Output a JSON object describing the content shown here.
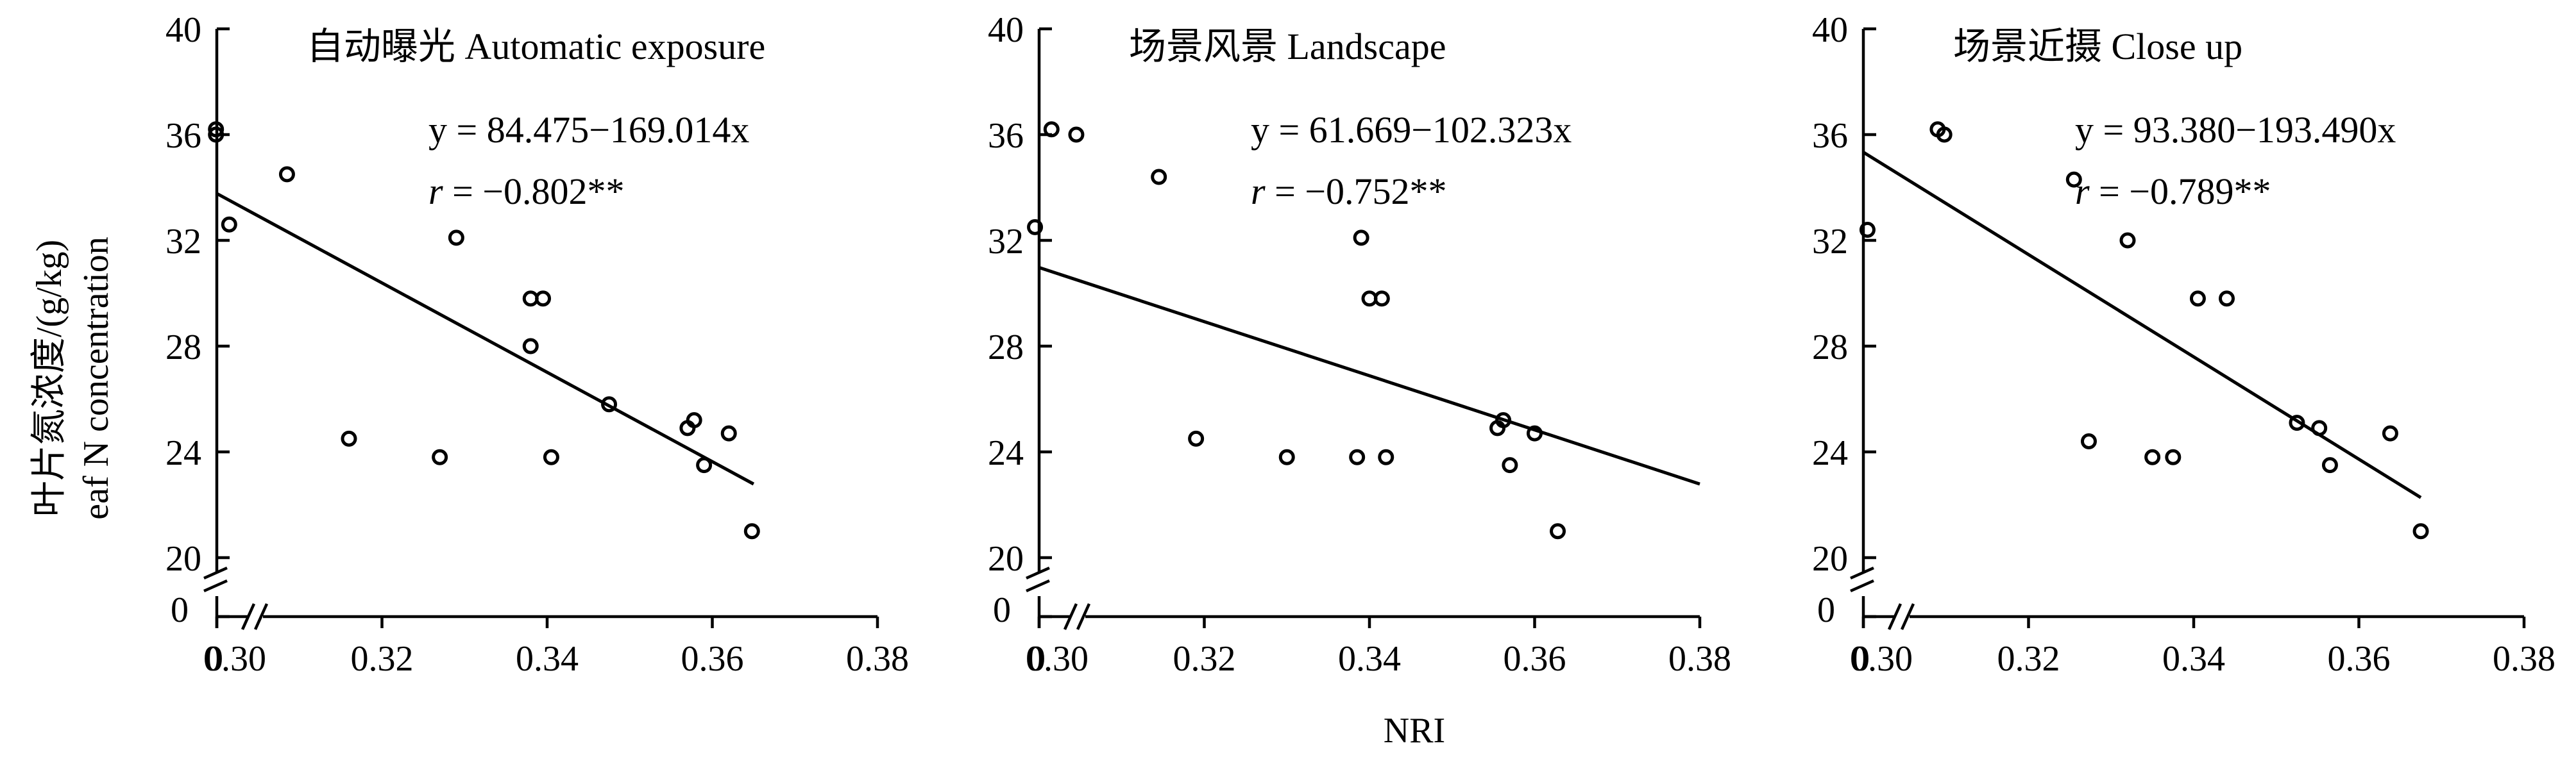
{
  "figure": {
    "ylabel_cn": "叶片氮浓度/(g/kg)",
    "ylabel_en": "eaf N concentration",
    "xlabel": "NRI"
  },
  "chart_data": [
    {
      "type": "scatter",
      "title": "自动曝光 Automatic exposure",
      "equation": "y = 84.475−169.014x",
      "r_prefix": "r",
      "r_value": " = −0.802**",
      "xlim": [
        0.3,
        0.38
      ],
      "ylim": [
        20,
        40
      ],
      "xticks": [
        0.3,
        0.32,
        0.34,
        0.36,
        0.38
      ],
      "xtick_labels": [
        "0.30",
        "0.32",
        "0.34",
        "0.36",
        "0.38"
      ],
      "yticks": [
        20,
        24,
        28,
        32,
        36,
        40
      ],
      "ytick_labels": [
        "20",
        "24",
        "28",
        "32",
        "36",
        "40"
      ],
      "zero_label_x": "0",
      "zero_label_y": "0",
      "points": [
        [
          0.2999,
          36.2
        ],
        [
          0.2999,
          36.0
        ],
        [
          0.3015,
          32.6
        ],
        [
          0.3085,
          34.5
        ],
        [
          0.316,
          24.5
        ],
        [
          0.327,
          23.8
        ],
        [
          0.329,
          32.1
        ],
        [
          0.338,
          29.8
        ],
        [
          0.3395,
          29.8
        ],
        [
          0.338,
          28.0
        ],
        [
          0.3405,
          23.8
        ],
        [
          0.3475,
          25.8
        ],
        [
          0.357,
          24.9
        ],
        [
          0.3578,
          25.2
        ],
        [
          0.359,
          23.5
        ],
        [
          0.362,
          24.7
        ],
        [
          0.3648,
          21.0
        ]
      ],
      "fit_line": {
        "slope": -169.014,
        "intercept": 84.475,
        "x_range": [
          0.3,
          0.365
        ]
      }
    },
    {
      "type": "scatter",
      "title": "场景风景 Landscape",
      "equation": "y = 61.669−102.323x",
      "r_prefix": "r",
      "r_value": " = −0.752**",
      "xlim": [
        0.3,
        0.38
      ],
      "ylim": [
        20,
        40
      ],
      "xticks": [
        0.3,
        0.32,
        0.34,
        0.36,
        0.38
      ],
      "xtick_labels": [
        "0.30",
        "0.32",
        "0.34",
        "0.36",
        "0.38"
      ],
      "yticks": [
        20,
        24,
        28,
        32,
        36,
        40
      ],
      "ytick_labels": [
        "20",
        "24",
        "28",
        "32",
        "36",
        "40"
      ],
      "zero_label_x": "0",
      "zero_label_y": "0",
      "points": [
        [
          0.2995,
          32.5
        ],
        [
          0.3015,
          36.2
        ],
        [
          0.3045,
          36.0
        ],
        [
          0.3145,
          34.4
        ],
        [
          0.319,
          24.5
        ],
        [
          0.33,
          23.8
        ],
        [
          0.3385,
          23.8
        ],
        [
          0.339,
          32.1
        ],
        [
          0.34,
          29.8
        ],
        [
          0.3415,
          29.8
        ],
        [
          0.342,
          23.8
        ],
        [
          0.3555,
          24.9
        ],
        [
          0.3562,
          25.2
        ],
        [
          0.357,
          23.5
        ],
        [
          0.36,
          24.7
        ],
        [
          0.3628,
          21.0
        ]
      ],
      "fit_line": {
        "slope": -102.323,
        "intercept": 61.669,
        "x_range": [
          0.3,
          0.38
        ]
      }
    },
    {
      "type": "scatter",
      "title": "场景近摄 Close up",
      "equation": "y = 93.380−193.490x",
      "r_prefix": "r",
      "r_value": " = −0.789**",
      "xlim": [
        0.3,
        0.38
      ],
      "ylim": [
        20,
        40
      ],
      "xticks": [
        0.3,
        0.32,
        0.34,
        0.36,
        0.38
      ],
      "xtick_labels": [
        "0.30",
        "0.32",
        "0.34",
        "0.36",
        "0.38"
      ],
      "yticks": [
        20,
        24,
        28,
        32,
        36,
        40
      ],
      "ytick_labels": [
        "20",
        "24",
        "28",
        "32",
        "36",
        "40"
      ],
      "zero_label_x": "0",
      "zero_label_y": "0",
      "points": [
        [
          0.3005,
          32.4
        ],
        [
          0.309,
          36.2
        ],
        [
          0.3098,
          36.0
        ],
        [
          0.3255,
          34.3
        ],
        [
          0.3273,
          24.4
        ],
        [
          0.332,
          32.0
        ],
        [
          0.335,
          23.8
        ],
        [
          0.3375,
          23.8
        ],
        [
          0.3405,
          29.8
        ],
        [
          0.344,
          29.8
        ],
        [
          0.3525,
          25.1
        ],
        [
          0.3552,
          24.9
        ],
        [
          0.3565,
          23.5
        ],
        [
          0.3638,
          24.7
        ],
        [
          0.3675,
          21.0
        ]
      ],
      "fit_line": {
        "slope": -193.49,
        "intercept": 93.38,
        "x_range": [
          0.3,
          0.3675
        ]
      }
    }
  ]
}
